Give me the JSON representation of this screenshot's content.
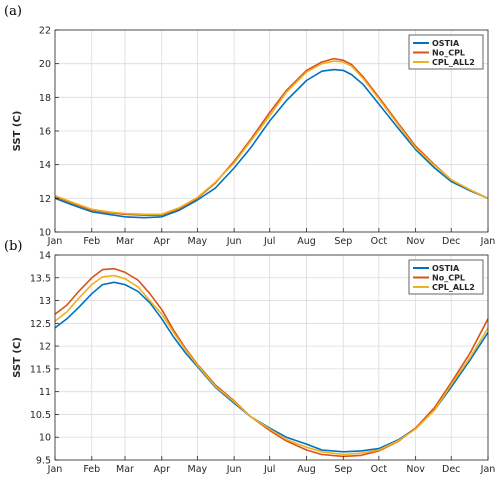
{
  "chart_data": [
    {
      "type": "line",
      "panel_label": "(a)",
      "ylabel": "SST (C)",
      "ylim": [
        10,
        22
      ],
      "yticks": [
        10,
        12,
        14,
        16,
        18,
        20,
        22
      ],
      "ytick_labels": [
        "10",
        "12",
        "14",
        "16",
        "18",
        "20",
        "22"
      ],
      "xlim": [
        0,
        365
      ],
      "xticks": [
        0,
        31,
        59,
        90,
        120,
        151,
        181,
        212,
        243,
        273,
        304,
        334,
        365
      ],
      "xtick_labels": [
        "Jan",
        "Feb",
        "Mar",
        "Apr",
        "May",
        "Jun",
        "Jul",
        "Aug",
        "Sep",
        "Oct",
        "Nov",
        "Dec",
        "Jan"
      ],
      "grid": true,
      "legend_position": "top-right",
      "series": [
        {
          "name": "OSTIA",
          "color": "#0072BD",
          "x": [
            0,
            15,
            31,
            45,
            59,
            75,
            90,
            105,
            120,
            135,
            151,
            165,
            181,
            195,
            212,
            225,
            235,
            243,
            250,
            260,
            273,
            290,
            304,
            320,
            334,
            350,
            365
          ],
          "y": [
            12.0,
            11.6,
            11.2,
            11.05,
            10.9,
            10.85,
            10.9,
            11.3,
            11.9,
            12.6,
            13.8,
            15.0,
            16.6,
            17.8,
            19.0,
            19.55,
            19.65,
            19.6,
            19.35,
            18.75,
            17.6,
            16.1,
            14.9,
            13.8,
            13.0,
            12.45,
            12.0
          ]
        },
        {
          "name": "No_CPL",
          "color": "#D95319",
          "x": [
            0,
            15,
            31,
            45,
            59,
            75,
            90,
            105,
            120,
            135,
            151,
            165,
            181,
            195,
            212,
            225,
            235,
            243,
            250,
            260,
            273,
            290,
            304,
            320,
            334,
            350,
            365
          ],
          "y": [
            12.1,
            11.7,
            11.3,
            11.15,
            11.05,
            11.0,
            11.0,
            11.4,
            12.0,
            12.9,
            14.2,
            15.5,
            17.1,
            18.4,
            19.6,
            20.1,
            20.3,
            20.2,
            19.95,
            19.2,
            18.0,
            16.4,
            15.1,
            14.0,
            13.1,
            12.5,
            12.0
          ]
        },
        {
          "name": "CPL_ALL2",
          "color": "#EDB120",
          "x": [
            0,
            15,
            31,
            45,
            59,
            75,
            90,
            105,
            120,
            135,
            151,
            165,
            181,
            195,
            212,
            225,
            235,
            243,
            250,
            260,
            273,
            290,
            304,
            320,
            334,
            350,
            365
          ],
          "y": [
            12.15,
            11.75,
            11.35,
            11.2,
            11.1,
            11.05,
            11.05,
            11.45,
            12.05,
            12.95,
            14.1,
            15.4,
            16.9,
            18.3,
            19.5,
            20.0,
            20.15,
            20.1,
            19.85,
            19.1,
            17.9,
            16.3,
            15.0,
            13.95,
            13.1,
            12.5,
            12.0
          ]
        }
      ]
    },
    {
      "type": "line",
      "panel_label": "(b)",
      "ylabel": "SST (C)",
      "ylim": [
        9.5,
        14
      ],
      "yticks": [
        9.5,
        10,
        10.5,
        11,
        11.5,
        12,
        12.5,
        13,
        13.5,
        14
      ],
      "ytick_labels": [
        "9.5",
        "10",
        "10.5",
        "11",
        "11.5",
        "12",
        "12.5",
        "13",
        "13.5",
        "14"
      ],
      "xlim": [
        0,
        365
      ],
      "xticks": [
        0,
        31,
        59,
        90,
        120,
        151,
        181,
        212,
        243,
        273,
        304,
        334,
        365
      ],
      "xtick_labels": [
        "Jan",
        "Feb",
        "Mar",
        "Apr",
        "May",
        "Jun",
        "Jul",
        "Aug",
        "Sep",
        "Oct",
        "Nov",
        "Dec",
        "Jan"
      ],
      "grid": true,
      "legend_position": "top-right",
      "series": [
        {
          "name": "OSTIA",
          "color": "#0072BD",
          "x": [
            0,
            10,
            20,
            31,
            40,
            50,
            59,
            70,
            80,
            90,
            100,
            110,
            120,
            135,
            151,
            165,
            181,
            195,
            212,
            225,
            243,
            258,
            273,
            290,
            304,
            320,
            334,
            350,
            365
          ],
          "y": [
            12.4,
            12.6,
            12.85,
            13.15,
            13.35,
            13.4,
            13.35,
            13.2,
            12.95,
            12.6,
            12.2,
            11.85,
            11.55,
            11.1,
            10.75,
            10.45,
            10.2,
            10.0,
            9.85,
            9.72,
            9.68,
            9.7,
            9.75,
            9.95,
            10.2,
            10.6,
            11.1,
            11.7,
            12.3
          ]
        },
        {
          "name": "No_CPL",
          "color": "#D95319",
          "x": [
            0,
            10,
            20,
            31,
            40,
            50,
            59,
            70,
            80,
            90,
            100,
            110,
            120,
            135,
            151,
            165,
            181,
            195,
            212,
            225,
            243,
            258,
            273,
            290,
            304,
            320,
            334,
            350,
            365
          ],
          "y": [
            12.7,
            12.9,
            13.2,
            13.5,
            13.68,
            13.7,
            13.62,
            13.45,
            13.15,
            12.8,
            12.35,
            11.95,
            11.6,
            11.15,
            10.8,
            10.45,
            10.15,
            9.92,
            9.72,
            9.62,
            9.58,
            9.6,
            9.7,
            9.92,
            10.2,
            10.65,
            11.2,
            11.85,
            12.6
          ]
        },
        {
          "name": "CPL_ALL2",
          "color": "#EDB120",
          "x": [
            0,
            10,
            20,
            31,
            40,
            50,
            59,
            70,
            80,
            90,
            100,
            110,
            120,
            135,
            151,
            165,
            181,
            195,
            212,
            225,
            243,
            258,
            273,
            290,
            304,
            320,
            334,
            350,
            365
          ],
          "y": [
            12.55,
            12.75,
            13.05,
            13.35,
            13.52,
            13.55,
            13.48,
            13.3,
            13.0,
            12.7,
            12.3,
            11.92,
            11.58,
            11.12,
            10.78,
            10.45,
            10.18,
            9.95,
            9.78,
            9.68,
            9.62,
            9.65,
            9.72,
            9.93,
            10.18,
            10.6,
            11.15,
            11.75,
            12.4
          ]
        }
      ]
    }
  ]
}
